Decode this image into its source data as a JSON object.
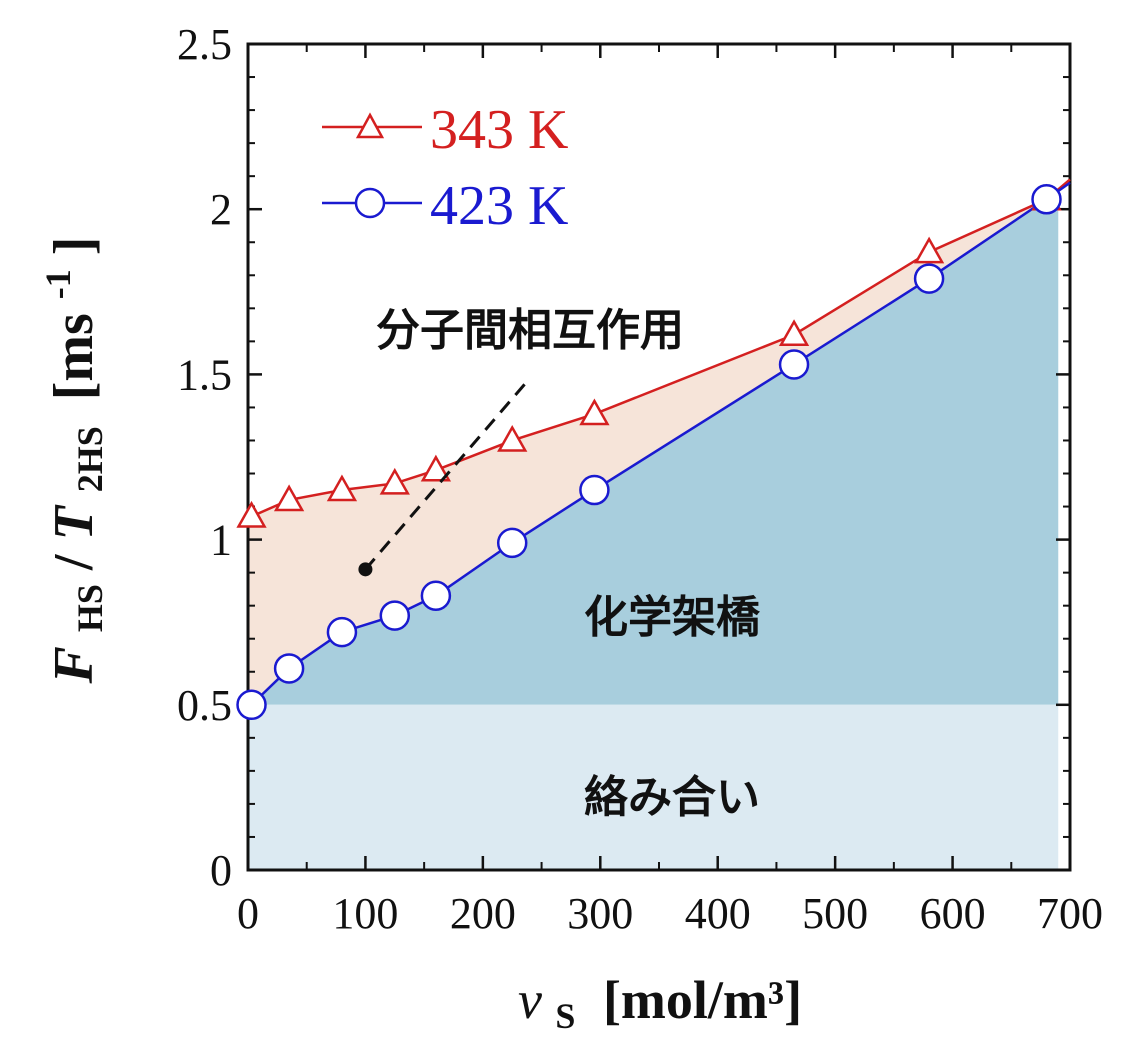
{
  "chart_data": {
    "type": "line",
    "xlabel": {
      "symbol": "ν",
      "subscript": "S",
      "unit": "[mol/m³]"
    },
    "ylabel": {
      "F": "F",
      "F_sub": "HS",
      "slash": "/",
      "T": "T",
      "T_sub": "2HS",
      "unit": "[ms",
      "unit_sup": "-1",
      "unit_close": "]"
    },
    "xlim": [
      0,
      700
    ],
    "ylim": [
      0,
      2.5
    ],
    "xticks": [
      0,
      100,
      200,
      300,
      400,
      500,
      600,
      700
    ],
    "yticks": [
      0,
      0.5,
      1,
      1.5,
      2,
      2.5
    ],
    "xtick_labels": [
      "0",
      "100",
      "200",
      "300",
      "400",
      "500",
      "600",
      "700"
    ],
    "ytick_labels": [
      "0",
      "0.5",
      "1",
      "1.5",
      "2",
      "2.5"
    ],
    "grid": false,
    "legend_position": "top-left",
    "series": [
      {
        "name": "343 K",
        "color": "#d42020",
        "marker": "triangle-open",
        "x": [
          3,
          35,
          80,
          125,
          160,
          225,
          295,
          465,
          580,
          680
        ],
        "y": [
          1.07,
          1.12,
          1.15,
          1.17,
          1.21,
          1.3,
          1.38,
          1.62,
          1.87,
          2.03
        ]
      },
      {
        "name": "423 K",
        "color": "#1a1ad0",
        "marker": "circle-open",
        "x": [
          3,
          35,
          80,
          125,
          160,
          225,
          295,
          465,
          580,
          680
        ],
        "y": [
          0.5,
          0.61,
          0.72,
          0.77,
          0.83,
          0.99,
          1.15,
          1.53,
          1.79,
          2.03
        ]
      }
    ],
    "regions": [
      {
        "label": "絡み合い",
        "color": "#dceaf2",
        "y_top": 0.5
      },
      {
        "label": "化学架橋",
        "color": "#a8cedd"
      },
      {
        "label": "分子間相互作用",
        "color": "#f6e4d9"
      }
    ],
    "annotation_point": {
      "x": 100,
      "y": 0.91
    }
  }
}
